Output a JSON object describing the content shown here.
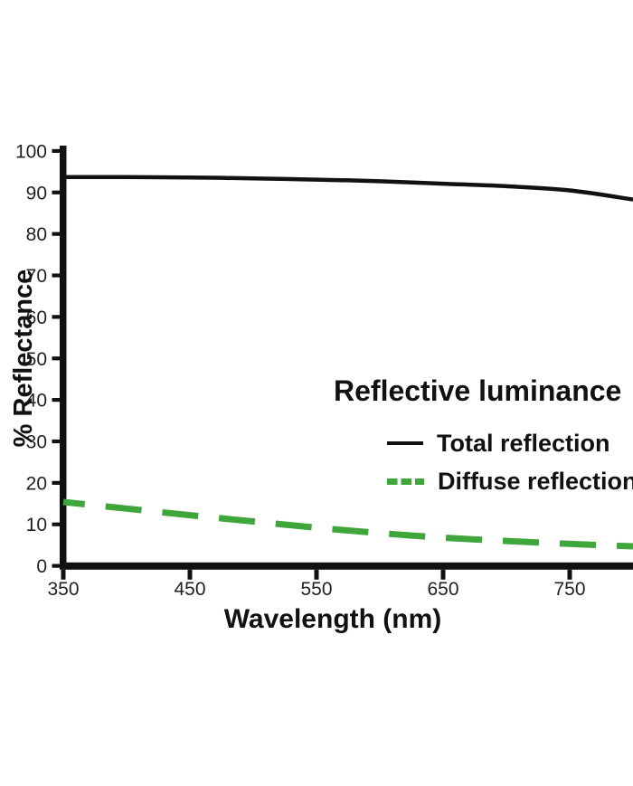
{
  "figure": {
    "background": "#ffffff",
    "axis_color": "#111111",
    "tick_label_color": "#231f20"
  },
  "chart_data": {
    "type": "line",
    "title": "Reflective luminance",
    "xlabel": "Wavelength (nm)",
    "ylabel": "% Reflectance",
    "xlim": [
      350,
      800
    ],
    "ylim": [
      0,
      100
    ],
    "x_ticks": [
      350,
      450,
      550,
      650,
      750
    ],
    "y_ticks": [
      0,
      10,
      20,
      30,
      40,
      50,
      60,
      70,
      80,
      90,
      100
    ],
    "grid": false,
    "legend_position": "center-right-inside",
    "x": [
      350,
      400,
      450,
      500,
      550,
      600,
      650,
      700,
      750,
      800
    ],
    "series": [
      {
        "name": "Total reflection",
        "color": "#111111",
        "style": "solid",
        "width": 4.5,
        "values": [
          93.7,
          93.7,
          93.6,
          93.4,
          93.1,
          92.7,
          92.1,
          91.5,
          90.5,
          88.3
        ]
      },
      {
        "name": "Diffuse reflection",
        "color": "#3ea63a",
        "style": "dashed",
        "width": 7,
        "values": [
          15.4,
          13.8,
          12.2,
          10.7,
          9.2,
          7.9,
          6.8,
          6.0,
          5.3,
          4.7
        ]
      }
    ]
  },
  "legend": {
    "title": "Reflective luminance",
    "entries": [
      {
        "label": "Total reflection"
      },
      {
        "label": "Diffuse reflection"
      }
    ]
  }
}
